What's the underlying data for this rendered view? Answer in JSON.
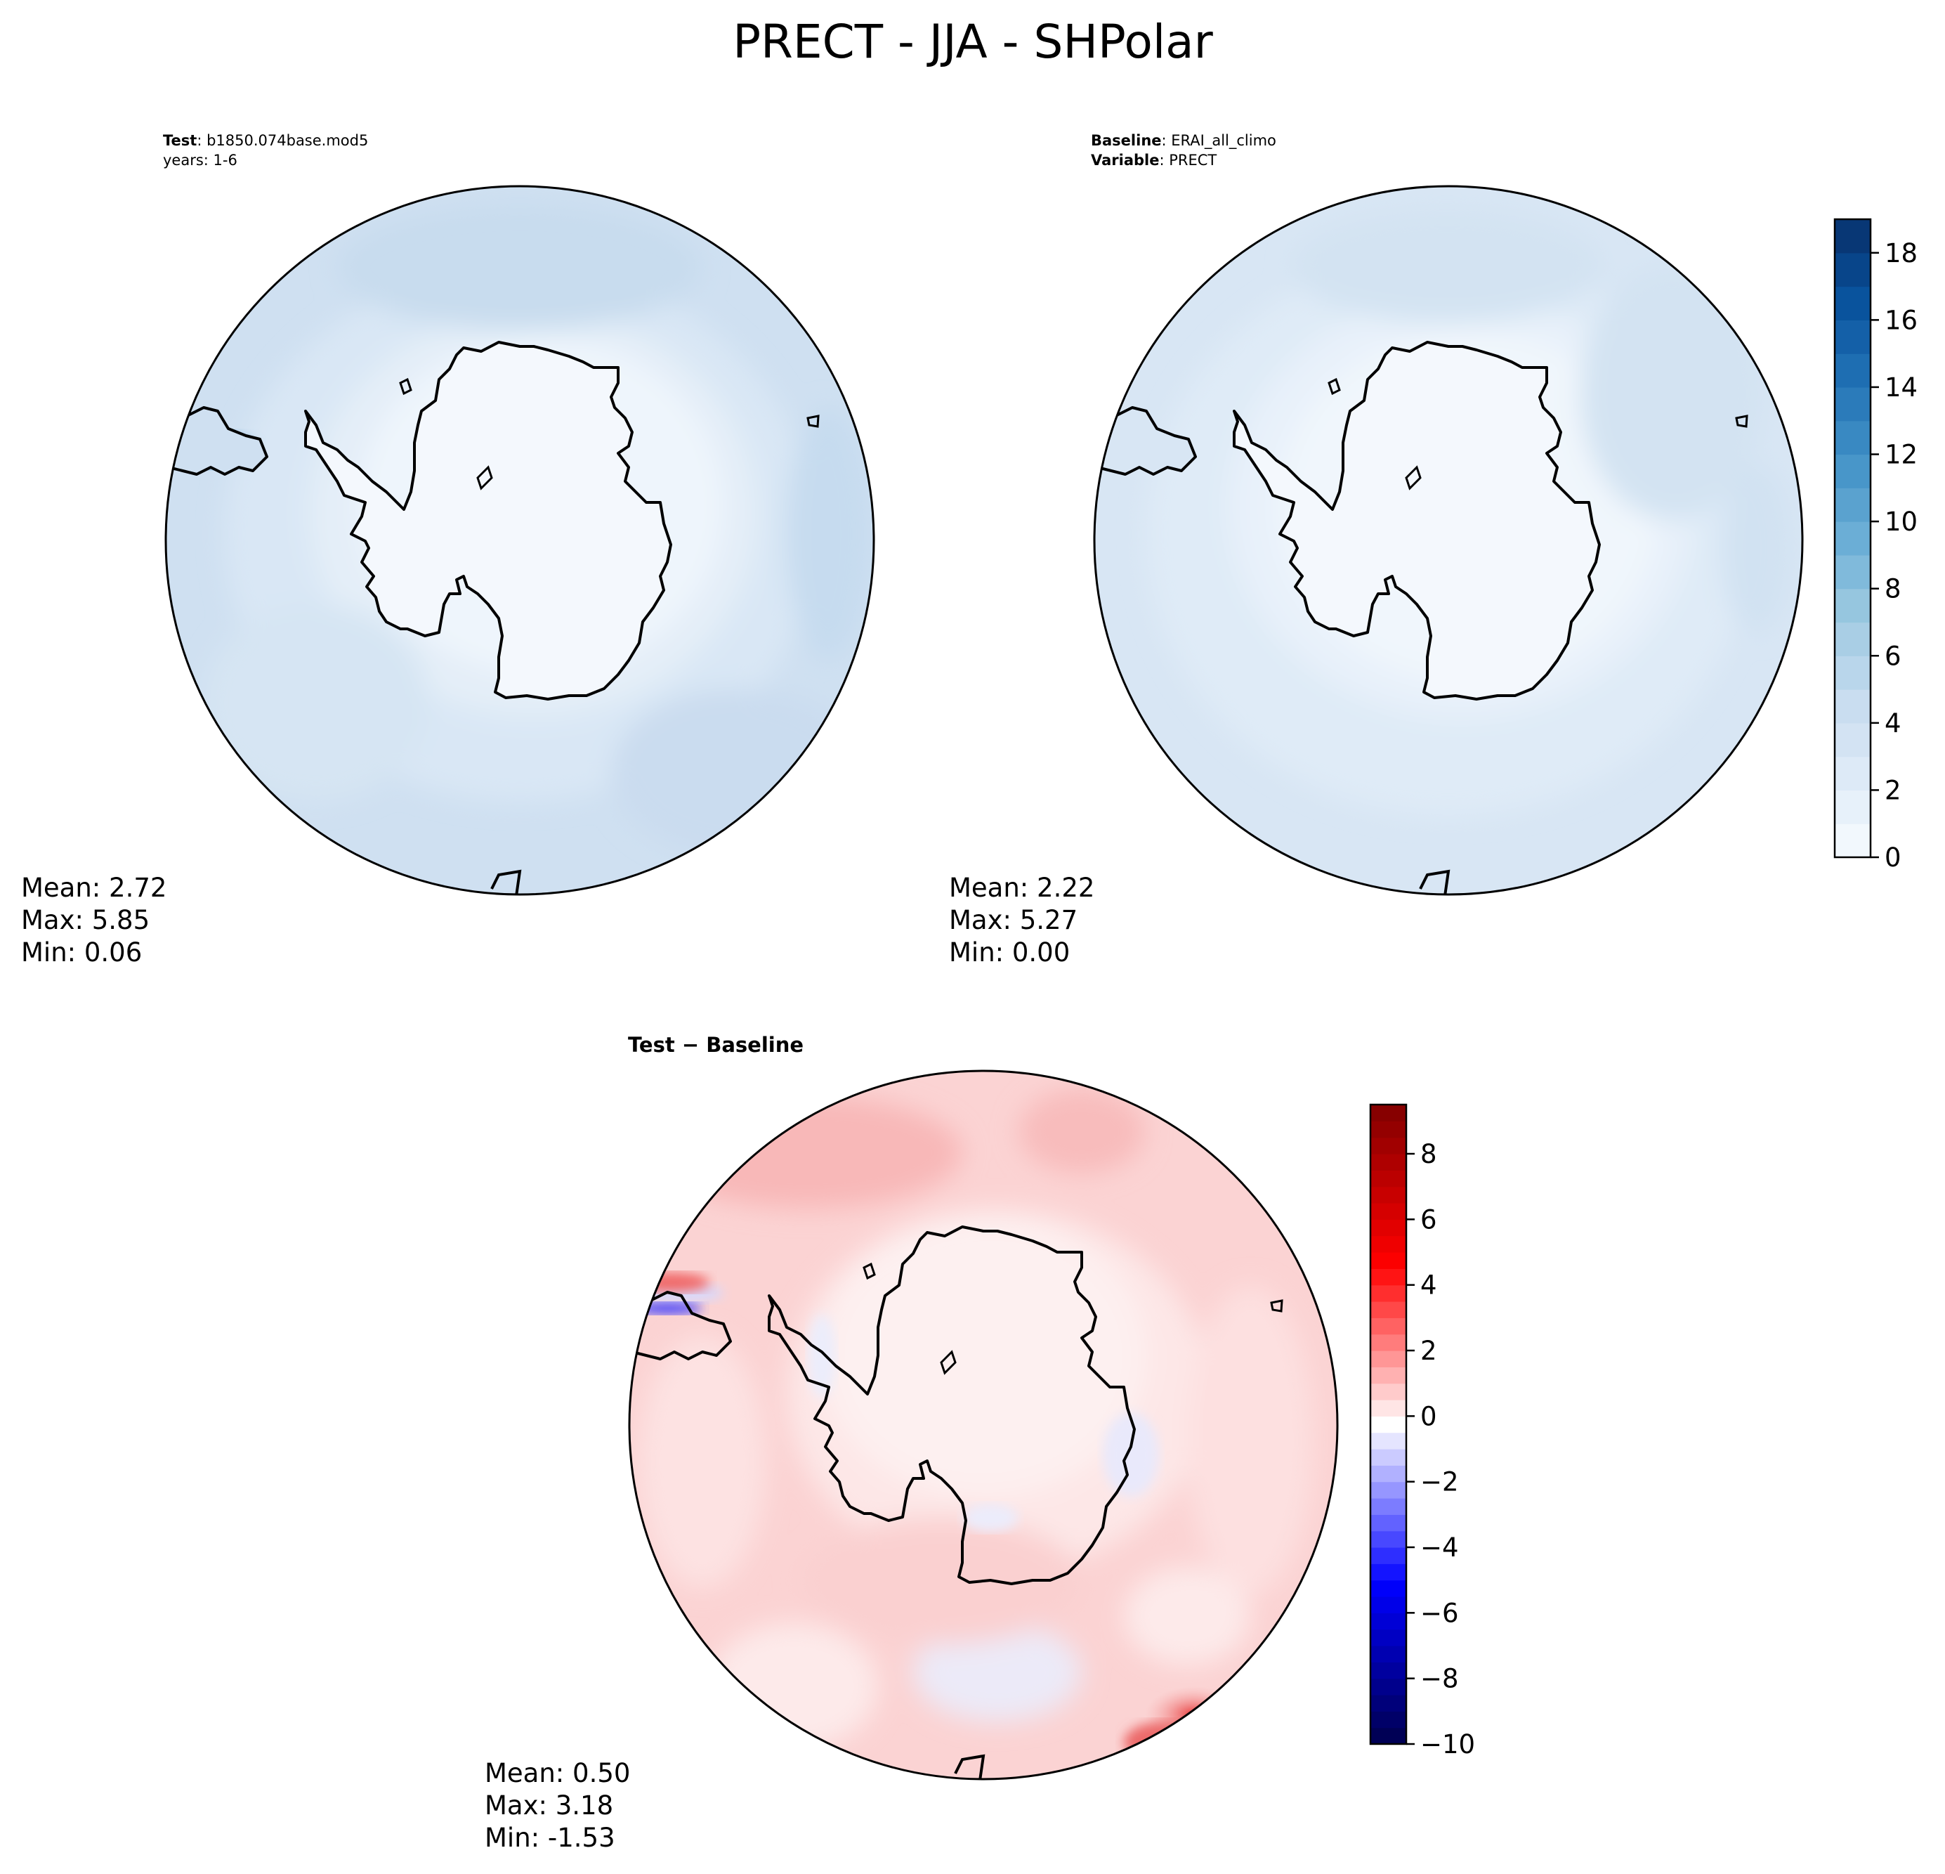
{
  "title": "PRECT - JJA - SHPolar",
  "chart_data": [
    {
      "type": "heatmap",
      "panel": "test",
      "header_label_1": "Test",
      "header_value_1": ": b1850.074base.mod5",
      "header_line_2": "years: 1-6",
      "stats": {
        "mean": "Mean:  2.72",
        "max": "Max:  5.85",
        "min": "Min:  0.06"
      },
      "projection": "south polar stereographic",
      "colormap": "Blues"
    },
    {
      "type": "heatmap",
      "panel": "baseline",
      "header_label_1": "Baseline",
      "header_value_1": ": ERAI_all_climo",
      "header_label_2": "Variable",
      "header_value_2": ": PRECT",
      "stats": {
        "mean": "Mean:  2.22",
        "max": "Max:  5.27",
        "min": "Min:  0.00"
      },
      "projection": "south polar stereographic",
      "colormap": "Blues",
      "colorbar": {
        "range": [
          0,
          19
        ],
        "levels": [
          0,
          1,
          2,
          3,
          4,
          5,
          6,
          7,
          8,
          9,
          10,
          11,
          12,
          13,
          14,
          15,
          16,
          17,
          18,
          19
        ],
        "ticks": [
          0,
          2,
          4,
          6,
          8,
          10,
          12,
          14,
          16,
          18
        ],
        "tick_labels": [
          "0",
          "2",
          "4",
          "6",
          "8",
          "10",
          "12",
          "14",
          "16",
          "18"
        ]
      }
    },
    {
      "type": "heatmap",
      "panel": "difference",
      "header_label": "Test − Baseline",
      "stats": {
        "mean": "Mean:  0.50",
        "max": "Max:  3.18",
        "min": "Min: -1.53"
      },
      "projection": "south polar stereographic",
      "colormap": "seismic",
      "colorbar": {
        "range": [
          -10,
          9.5
        ],
        "levels": [
          -10,
          -9.5,
          -9,
          -8.5,
          -8,
          -7.5,
          -7,
          -6.5,
          -6,
          -5.5,
          -5,
          -4.5,
          -4,
          -3.5,
          -3,
          -2.5,
          -2,
          -1.5,
          -1,
          -0.5,
          0,
          0.5,
          1,
          1.5,
          2,
          2.5,
          3,
          3.5,
          4,
          4.5,
          5,
          5.5,
          6,
          6.5,
          7,
          7.5,
          8,
          8.5,
          9,
          9.5
        ],
        "ticks": [
          -10,
          -8,
          -6,
          -4,
          -2,
          0,
          2,
          4,
          6,
          8
        ],
        "tick_labels": [
          "−10",
          "−8",
          "−6",
          "−4",
          "−2",
          "0",
          "2",
          "4",
          "6",
          "8"
        ]
      }
    }
  ]
}
